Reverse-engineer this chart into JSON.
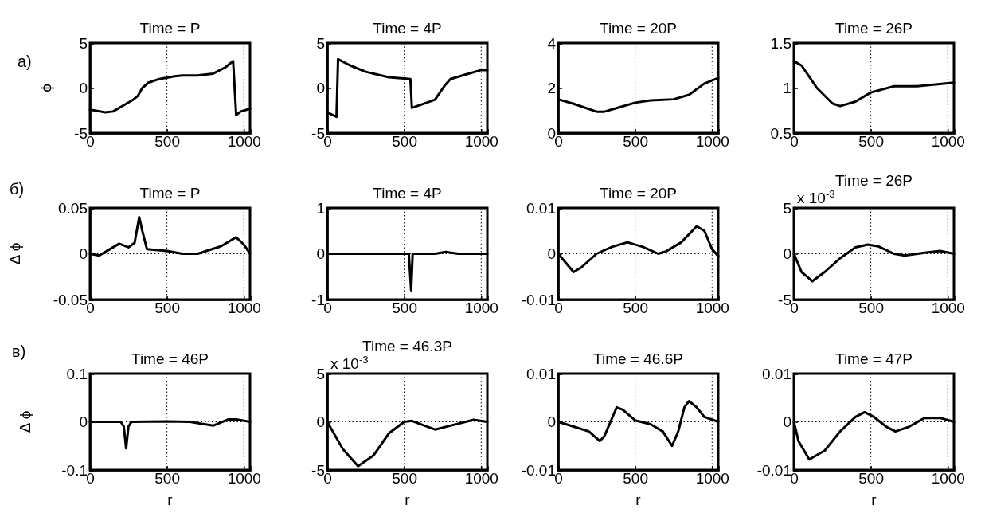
{
  "chart_data": [
    {
      "type": "line",
      "title": "Time = P",
      "ylabel": "ϕ",
      "annotations": [
        "а)"
      ],
      "x": [
        0,
        100,
        150,
        200,
        280,
        310,
        340,
        380,
        450,
        550,
        600,
        700,
        800,
        880,
        930,
        950,
        980,
        1040
      ],
      "series": [
        {
          "color": "#000000",
          "values": [
            -2.4,
            -2.7,
            -2.6,
            -2.1,
            -1.3,
            -0.9,
            0,
            0.6,
            1.0,
            1.3,
            1.4,
            1.4,
            1.6,
            2.3,
            3.0,
            -3.0,
            -2.6,
            -2.3
          ]
        }
      ],
      "xlim": [
        0,
        1040
      ],
      "xticks": [
        0,
        500,
        1000
      ],
      "ylim": [
        -5,
        5
      ],
      "yticks": [
        -5,
        0,
        5
      ],
      "grid": true
    },
    {
      "type": "line",
      "title": "Time = 4P",
      "x": [
        0,
        60,
        70,
        150,
        250,
        400,
        540,
        550,
        650,
        700,
        760,
        800,
        900,
        1000,
        1040
      ],
      "series": [
        {
          "color": "#000000",
          "values": [
            -2.7,
            -3.2,
            3.2,
            2.5,
            1.8,
            1.2,
            1.0,
            -2.2,
            -1.6,
            -1.3,
            0.2,
            1.0,
            1.5,
            2.0,
            2.0
          ]
        }
      ],
      "xlim": [
        0,
        1040
      ],
      "xticks": [
        0,
        500,
        1000
      ],
      "ylim": [
        -5,
        5
      ],
      "yticks": [
        -5,
        0,
        5
      ],
      "grid": true
    },
    {
      "type": "line",
      "title": "Time = 20P",
      "x": [
        0,
        100,
        250,
        300,
        400,
        500,
        600,
        750,
        850,
        950,
        1040
      ],
      "series": [
        {
          "color": "#000000",
          "values": [
            1.5,
            1.3,
            0.95,
            0.95,
            1.15,
            1.35,
            1.45,
            1.5,
            1.7,
            2.2,
            2.45
          ]
        }
      ],
      "xlim": [
        0,
        1040
      ],
      "xticks": [
        0,
        500,
        1000
      ],
      "ylim": [
        0,
        4
      ],
      "yticks": [
        0,
        2,
        4
      ],
      "grid": true
    },
    {
      "type": "line",
      "title": "Time = 26P",
      "x": [
        0,
        50,
        150,
        250,
        300,
        400,
        500,
        650,
        800,
        1040
      ],
      "series": [
        {
          "color": "#000000",
          "values": [
            1.3,
            1.25,
            1.0,
            0.83,
            0.8,
            0.85,
            0.95,
            1.02,
            1.02,
            1.06
          ]
        }
      ],
      "xlim": [
        0,
        1040
      ],
      "xticks": [
        0,
        500,
        1000
      ],
      "ylim": [
        0.5,
        1.5
      ],
      "yticks": [
        0.5,
        1,
        1.5
      ],
      "grid": true
    },
    {
      "type": "line",
      "title": "Time = P",
      "ylabel": "Δ ϕ",
      "annotations": [
        "б)"
      ],
      "x": [
        0,
        60,
        120,
        190,
        250,
        290,
        320,
        340,
        370,
        500,
        600,
        700,
        850,
        950,
        1000,
        1040
      ],
      "series": [
        {
          "color": "#000000",
          "values": [
            0,
            -0.002,
            0.004,
            0.011,
            0.007,
            0.012,
            0.04,
            0.025,
            0.005,
            0.003,
            0,
            0,
            0.008,
            0.018,
            0.01,
            0
          ]
        }
      ],
      "xlim": [
        0,
        1040
      ],
      "xticks": [
        0,
        500,
        1000
      ],
      "ylim": [
        -0.05,
        0.05
      ],
      "yticks": [
        -0.05,
        0,
        0.05
      ],
      "grid": true
    },
    {
      "type": "line",
      "title": "Time = 4P",
      "x": [
        0,
        530,
        545,
        555,
        700,
        770,
        850,
        1040
      ],
      "series": [
        {
          "color": "#000000",
          "values": [
            0,
            0,
            -0.8,
            0,
            0,
            0.04,
            0,
            0
          ]
        }
      ],
      "xlim": [
        0,
        1040
      ],
      "xticks": [
        0,
        500,
        1000
      ],
      "ylim": [
        -1,
        1
      ],
      "yticks": [
        -1,
        0,
        1
      ],
      "grid": true
    },
    {
      "type": "line",
      "title": "Time = 20P",
      "x": [
        0,
        50,
        100,
        150,
        250,
        350,
        450,
        550,
        650,
        700,
        800,
        900,
        950,
        1000,
        1040
      ],
      "series": [
        {
          "color": "#000000",
          "values": [
            0,
            -0.002,
            -0.004,
            -0.003,
            0,
            0.0015,
            0.0025,
            0.0015,
            0,
            0.0005,
            0.0025,
            0.006,
            0.005,
            0.001,
            -0.0005
          ]
        }
      ],
      "xlim": [
        0,
        1040
      ],
      "xticks": [
        0,
        500,
        1000
      ],
      "ylim": [
        -0.01,
        0.01
      ],
      "yticks": [
        -0.01,
        0,
        0.01
      ],
      "grid": true
    },
    {
      "type": "line",
      "title": "Time = 26P",
      "annotations": [
        "x 10$^{-3}$"
      ],
      "x": [
        0,
        50,
        120,
        200,
        300,
        400,
        480,
        550,
        650,
        720,
        850,
        950,
        1040
      ],
      "series": [
        {
          "color": "#000000",
          "values": [
            0,
            -2,
            -3,
            -2,
            -0.5,
            0.7,
            1.0,
            0.8,
            0,
            -0.2,
            0.1,
            0.3,
            0
          ]
        }
      ],
      "xlim": [
        0,
        1040
      ],
      "xticks": [
        0,
        500,
        1000
      ],
      "ylim": [
        -5,
        5
      ],
      "yticks": [
        -5,
        0,
        5
      ],
      "grid": true
    },
    {
      "type": "line",
      "title": "Time = 46P",
      "ylabel": "Δ ϕ",
      "xlabel": "r",
      "annotations": [
        "в)"
      ],
      "x": [
        0,
        200,
        220,
        235,
        250,
        270,
        500,
        650,
        800,
        900,
        950,
        1040
      ],
      "series": [
        {
          "color": "#000000",
          "values": [
            0,
            0,
            -0.01,
            -0.055,
            -0.01,
            0,
            0.001,
            0,
            -0.008,
            0.005,
            0.005,
            0
          ]
        }
      ],
      "xlim": [
        0,
        1040
      ],
      "xticks": [
        0,
        500,
        1000
      ],
      "ylim": [
        -0.1,
        0.1
      ],
      "yticks": [
        -0.1,
        0,
        0.1
      ],
      "grid": true
    },
    {
      "type": "line",
      "title": "Time = 46.3P",
      "xlabel": "r",
      "annotations": [
        "x 10$^{-3}$"
      ],
      "x": [
        0,
        100,
        200,
        300,
        400,
        500,
        550,
        650,
        700,
        800,
        950,
        1040
      ],
      "series": [
        {
          "color": "#000000",
          "values": [
            0,
            -2.8,
            -4.6,
            -3.5,
            -1.2,
            0,
            0.1,
            -0.5,
            -0.8,
            -0.4,
            0.2,
            0
          ]
        }
      ],
      "xlim": [
        0,
        1040
      ],
      "xticks": [
        0,
        500,
        1000
      ],
      "ylim": [
        -5,
        5
      ],
      "yticks": [
        -5,
        0,
        5
      ],
      "grid": true
    },
    {
      "type": "line",
      "title": "Time = 46.6P",
      "xlabel": "r",
      "x": [
        0,
        100,
        200,
        270,
        300,
        340,
        380,
        420,
        500,
        600,
        680,
        740,
        780,
        820,
        850,
        900,
        950,
        1040
      ],
      "series": [
        {
          "color": "#000000",
          "values": [
            0,
            -0.001,
            -0.002,
            -0.004,
            -0.003,
            0,
            0.003,
            0.0025,
            0.0003,
            -0.0005,
            -0.002,
            -0.005,
            -0.002,
            0.003,
            0.0043,
            0.003,
            0.001,
            0
          ]
        }
      ],
      "xlim": [
        0,
        1040
      ],
      "xticks": [
        0,
        500,
        1000
      ],
      "ylim": [
        -0.01,
        0.01
      ],
      "yticks": [
        -0.01,
        0,
        0.01
      ],
      "grid": true
    },
    {
      "type": "line",
      "title": "Time = 47P",
      "xlabel": "r",
      "x": [
        0,
        30,
        100,
        200,
        300,
        400,
        460,
        520,
        600,
        660,
        750,
        850,
        950,
        1040
      ],
      "series": [
        {
          "color": "#000000",
          "values": [
            0,
            -0.004,
            -0.0078,
            -0.006,
            -0.002,
            0.001,
            0.002,
            0.001,
            -0.001,
            -0.002,
            -0.001,
            0.0008,
            0.0008,
            0
          ]
        }
      ],
      "xlim": [
        0,
        1040
      ],
      "xticks": [
        0,
        500,
        1000
      ],
      "ylim": [
        -0.01,
        0.01
      ],
      "yticks": [
        -0.01,
        0,
        0.01
      ],
      "grid": true
    }
  ]
}
